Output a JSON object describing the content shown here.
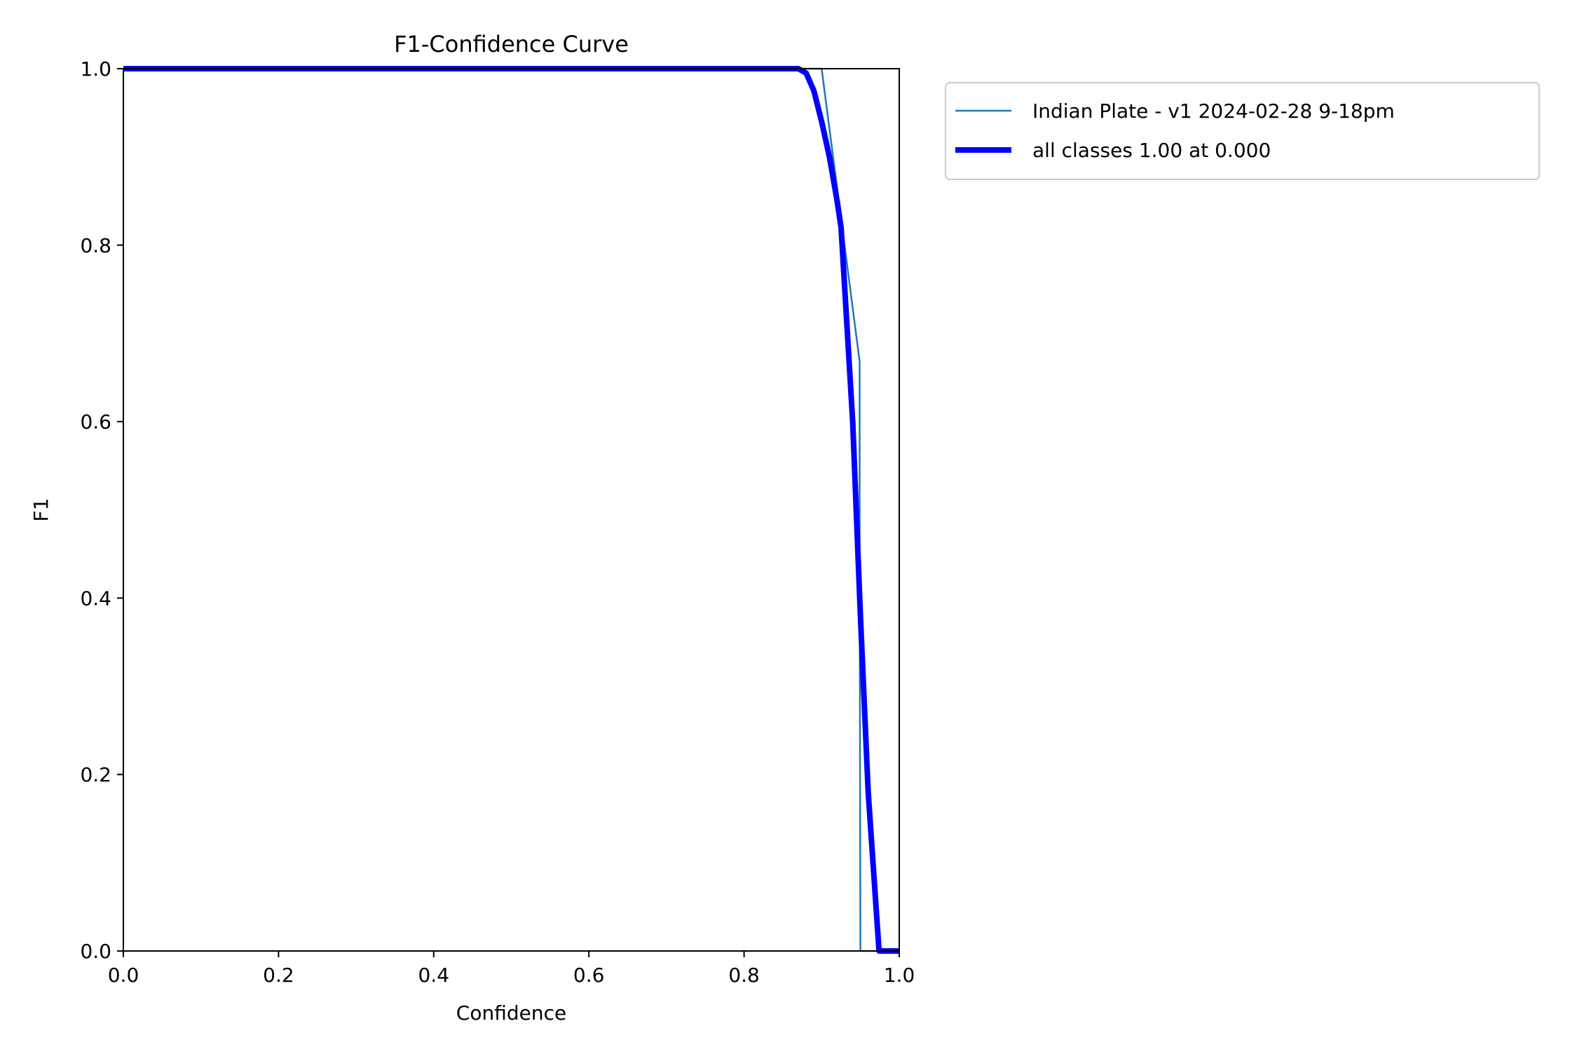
{
  "chart_data": {
    "type": "line",
    "title": "F1-Confidence Curve",
    "xlabel": "Confidence",
    "ylabel": "F1",
    "xlim": [
      0.0,
      1.0
    ],
    "ylim": [
      0.0,
      1.0
    ],
    "xticks": [
      "0.0",
      "0.2",
      "0.4",
      "0.6",
      "0.8",
      "1.0"
    ],
    "yticks": [
      "0.0",
      "0.2",
      "0.4",
      "0.6",
      "0.8",
      "1.0"
    ],
    "grid": false,
    "legend_position": "outside-top-right",
    "series": [
      {
        "name": "Indian Plate - v1 2024-02-28 9-18pm",
        "color": "#1f77b4",
        "style": "thin",
        "x": [
          0.0,
          0.9,
          0.949,
          0.949,
          0.95,
          1.0
        ],
        "y": [
          1.0,
          1.0,
          0.668,
          0.45,
          0.0,
          0.0
        ]
      },
      {
        "name": "all classes 1.00 at 0.000",
        "color": "#0000ff",
        "style": "thick",
        "x": [
          0.0,
          0.87,
          0.88,
          0.89,
          0.9,
          0.91,
          0.92,
          0.925,
          0.94,
          0.95,
          0.96,
          0.974,
          1.0
        ],
        "y": [
          1.0,
          1.0,
          0.995,
          0.975,
          0.94,
          0.9,
          0.85,
          0.82,
          0.6,
          0.38,
          0.18,
          0.0,
          0.0
        ]
      }
    ]
  }
}
